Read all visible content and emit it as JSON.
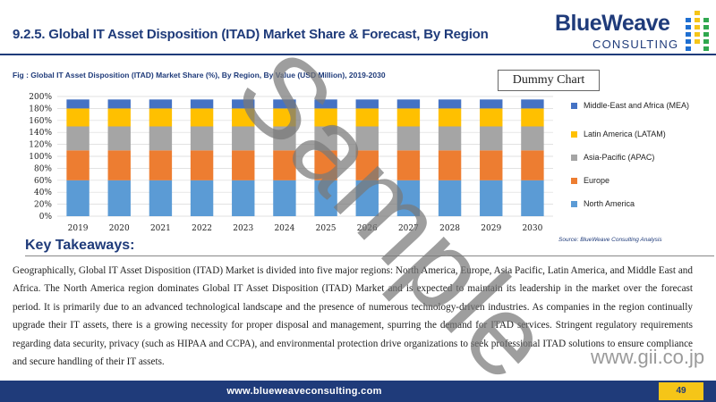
{
  "header": {
    "title": "9.2.5. Global IT Asset Disposition (ITAD) Market Share & Forecast, By Region"
  },
  "logo": {
    "brand": "BlueWeave",
    "sub": "CONSULTING",
    "dot_colors": [
      "#1f6fd1",
      "#f5c518",
      "#2fa84f"
    ]
  },
  "figure": {
    "caption": "Fig : Global IT Asset Disposition (ITAD) Market Share (%), By Region, By Value (USD Million), 2019-2030",
    "dummy_label": "Dummy Chart",
    "source": "Source: BlueWeave Consulting Analysis"
  },
  "chart_data": {
    "type": "bar",
    "stacked": true,
    "categories": [
      "2019",
      "2020",
      "2021",
      "2022",
      "2023",
      "2024",
      "2025",
      "2026",
      "2027",
      "2028",
      "2029",
      "2030"
    ],
    "ylim": [
      0,
      200
    ],
    "yticks": [
      "0%",
      "20%",
      "40%",
      "60%",
      "80%",
      "100%",
      "120%",
      "140%",
      "160%",
      "180%",
      "200%"
    ],
    "grid": true,
    "legend_position": "right",
    "series": [
      {
        "name": "North America",
        "color": "#5b9bd5",
        "values": [
          60,
          60,
          60,
          60,
          60,
          60,
          60,
          60,
          60,
          60,
          60,
          60
        ]
      },
      {
        "name": "Europe",
        "color": "#ed7d31",
        "values": [
          50,
          50,
          50,
          50,
          50,
          50,
          50,
          50,
          50,
          50,
          50,
          50
        ]
      },
      {
        "name": "Asia-Pacific (APAC)",
        "color": "#a5a5a5",
        "values": [
          40,
          40,
          40,
          40,
          40,
          40,
          40,
          40,
          40,
          40,
          40,
          40
        ]
      },
      {
        "name": "Latin America (LATAM)",
        "color": "#ffc000",
        "values": [
          30,
          30,
          30,
          30,
          30,
          30,
          30,
          30,
          30,
          30,
          30,
          30
        ]
      },
      {
        "name": "Middle-East and Africa (MEA)",
        "color": "#4472c4",
        "values": [
          15,
          15,
          15,
          15,
          15,
          15,
          15,
          15,
          15,
          15,
          15,
          15
        ]
      }
    ]
  },
  "takeaways": {
    "title": "Key Takeaways:",
    "body": "Geographically, Global IT Asset Disposition (ITAD) Market is divided into five major regions: North America, Europe, Asia Pacific, Latin America, and Middle East and Africa. The North America region dominates Global IT Asset Disposition (ITAD) Market and is expected to maintain its leadership in the market over the forecast period. It is primarily due to an advanced technological landscape and the presence of numerous technology-driven industries. As companies in the region continually upgrade their IT assets, there is a growing necessity for proper disposal and management, spurring the demand for ITAD services. Stringent regulatory requirements regarding data security, privacy (such as HIPAA and CCPA), and environmental protection drive organizations to seek professional ITAD solutions to ensure compliance and secure handling of their IT assets."
  },
  "footer": {
    "url": "www.blueweaveconsulting.com",
    "page_number": "49"
  },
  "watermark": {
    "text": "Sample",
    "url": "www.gii.co.jp"
  }
}
